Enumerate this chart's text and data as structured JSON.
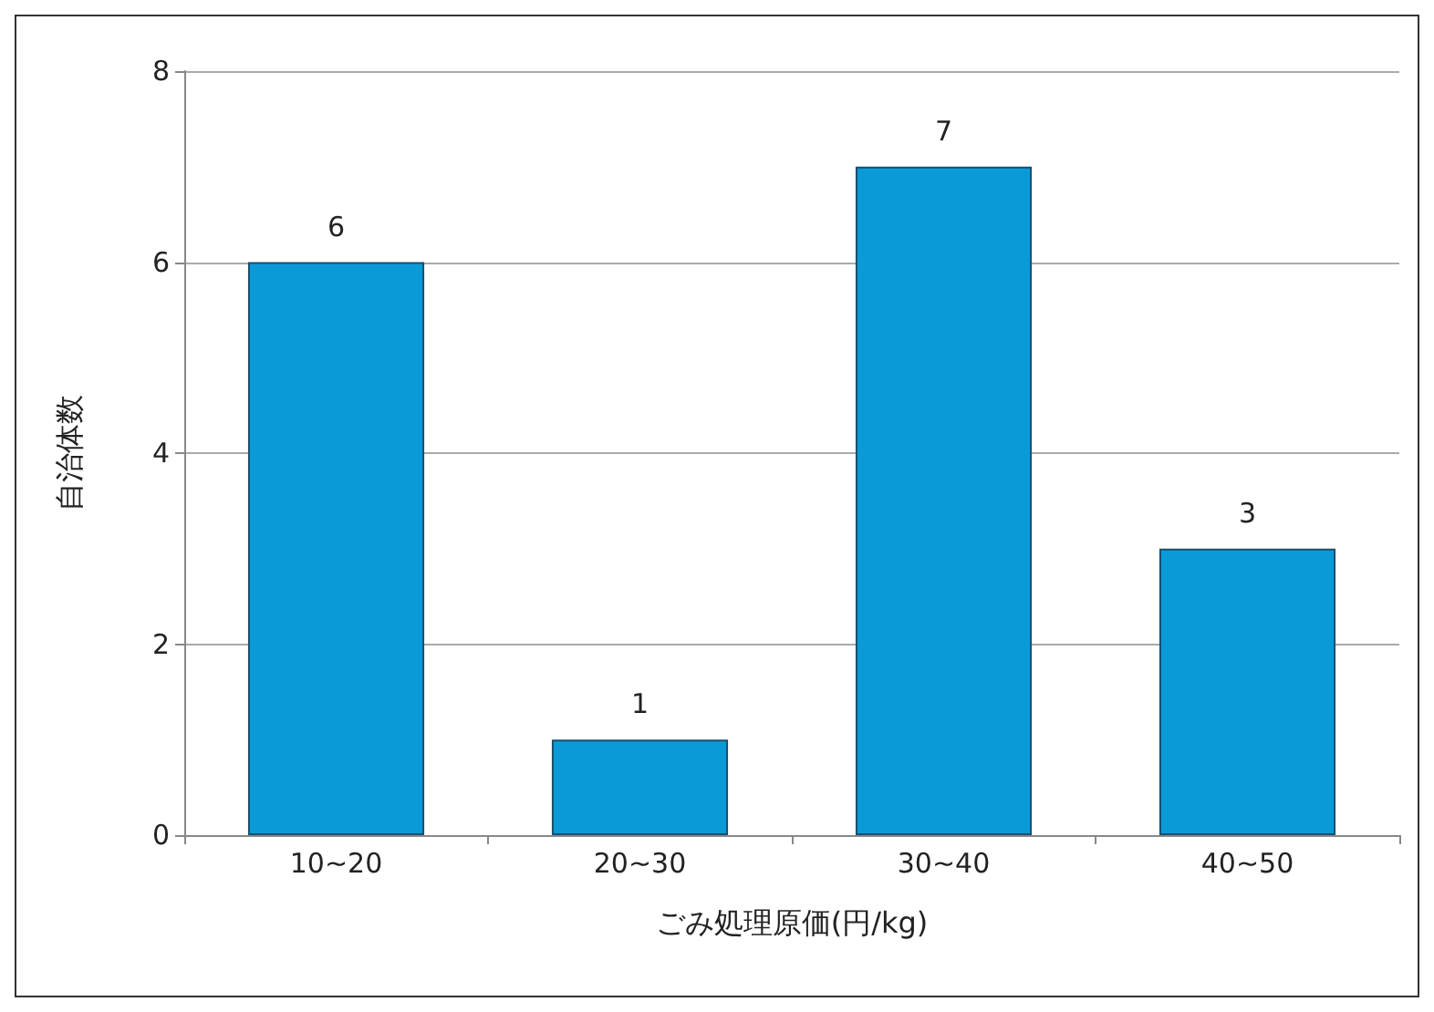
{
  "chart_data": {
    "type": "bar",
    "xlabel": "ごみ処理原価(円/kg)",
    "ylabel": "自治体数",
    "categories": [
      "10~20",
      "20~30",
      "30~40",
      "40~50"
    ],
    "values": [
      6,
      1,
      7,
      3
    ],
    "color": "#0a9ad8",
    "ylim": [
      0,
      8
    ],
    "yticks": [
      0,
      2,
      4,
      6,
      8
    ],
    "grid": "y",
    "data_labels": true
  }
}
